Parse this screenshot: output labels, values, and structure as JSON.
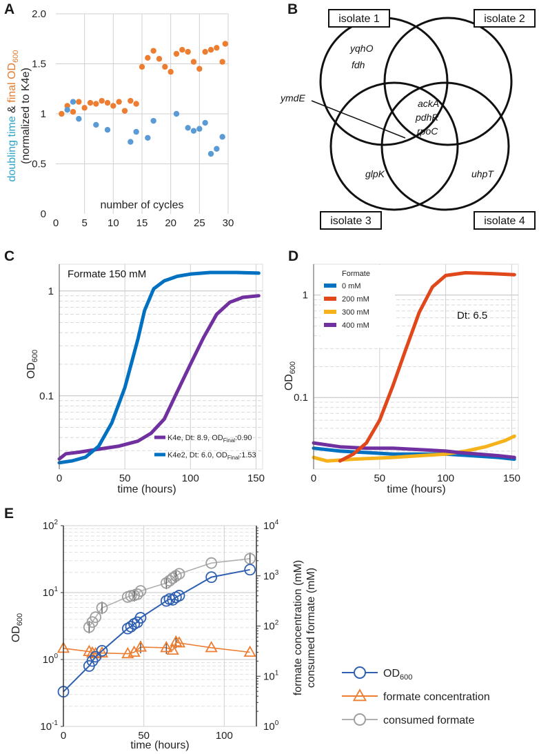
{
  "panels": {
    "A": "A",
    "B": "B",
    "C": "C",
    "D": "D",
    "E": "E"
  },
  "colors": {
    "orange": "#ED7D31",
    "blue_point": "#5B9BD5",
    "teal_text": "#2EA4C9",
    "orange_text": "#E27A2C",
    "blue_line": "#0070C0",
    "purple_line": "#7030A0",
    "red_line": "#E0481C",
    "yellow_line": "#F5B21B",
    "e_blue": "#2E5FB0",
    "e_orange": "#ED7D31",
    "e_grey": "#9E9E9E"
  },
  "chart_data": [
    {
      "id": "A",
      "type": "scatter",
      "ylabel_parts": {
        "p1": "doubling time",
        "p2": " & ",
        "p3": "final OD",
        "p3_sub": "600",
        "line2": "(normalized to K4e)"
      },
      "xlabel": "number of cycles",
      "xlim": [
        0,
        30
      ],
      "ylim": [
        0,
        2.0
      ],
      "xticks": [
        0,
        5,
        10,
        15,
        20,
        25,
        30
      ],
      "yticks": [
        0,
        0.5,
        1,
        1.5,
        2.0
      ],
      "ytick_labels": [
        "0",
        "0.5",
        "1",
        "1.5",
        "2.0"
      ],
      "series": [
        {
          "name": "final OD600",
          "color": "orange",
          "points": [
            [
              1,
              1.0
            ],
            [
              2,
              1.08
            ],
            [
              3,
              1.02
            ],
            [
              4,
              1.12
            ],
            [
              5,
              1.06
            ],
            [
              6,
              1.11
            ],
            [
              7,
              1.1
            ],
            [
              8,
              1.13
            ],
            [
              9,
              1.11
            ],
            [
              10,
              1.08
            ],
            [
              11,
              1.12
            ],
            [
              12,
              1.03
            ],
            [
              13,
              1.13
            ],
            [
              14,
              1.1
            ],
            [
              15,
              1.47
            ],
            [
              16,
              1.56
            ],
            [
              17,
              1.63
            ],
            [
              18,
              1.55
            ],
            [
              19,
              1.47
            ],
            [
              20,
              1.42
            ],
            [
              21,
              1.6
            ],
            [
              22,
              1.64
            ],
            [
              23,
              1.62
            ],
            [
              24,
              1.52
            ],
            [
              25,
              1.45
            ],
            [
              26,
              1.62
            ],
            [
              27,
              1.64
            ],
            [
              28,
              1.66
            ],
            [
              29,
              1.52
            ],
            [
              29.5,
              1.7
            ]
          ]
        },
        {
          "name": "doubling time",
          "color": "blue_point",
          "points": [
            [
              2,
              1.04
            ],
            [
              3,
              1.12
            ],
            [
              4,
              0.95
            ],
            [
              7,
              0.89
            ],
            [
              9,
              0.84
            ],
            [
              13,
              0.72
            ],
            [
              14,
              0.82
            ],
            [
              16,
              0.76
            ],
            [
              17,
              0.93
            ],
            [
              21,
              1.0
            ],
            [
              23,
              0.86
            ],
            [
              24,
              0.83
            ],
            [
              25,
              0.85
            ],
            [
              26,
              0.91
            ],
            [
              27,
              0.6
            ],
            [
              28,
              0.65
            ],
            [
              29,
              0.77
            ]
          ]
        }
      ]
    },
    {
      "id": "B",
      "type": "venn",
      "sets": [
        "isolate 1",
        "isolate 2",
        "isolate 3",
        "isolate 4"
      ],
      "genes": {
        "iso1_only": [
          "yqhO",
          "fdh"
        ],
        "center": [
          "ackA",
          "pdhR",
          "rpoC"
        ],
        "iso3_only": [
          "glpK"
        ],
        "iso4_only": [
          "uhpT"
        ],
        "iso1_iso3": [
          "ymdE"
        ]
      }
    },
    {
      "id": "C",
      "type": "line",
      "yscale": "log",
      "title_annotation": "Formate 150 mM",
      "xlabel": "time (hours)",
      "ylabel": "OD",
      "ylabel_sub": "600",
      "xlim": [
        0,
        155
      ],
      "ylim": [
        0.02,
        1.8
      ],
      "xticks": [
        0,
        50,
        100,
        150
      ],
      "yticks": [
        0.1,
        1
      ],
      "ytick_labels": [
        "0.1",
        "1"
      ],
      "series": [
        {
          "name": "K4e, Dt: 8.9, OD",
          "name_sub": "Final",
          "name_tail": ":0.90",
          "color": "purple_line",
          "points": [
            [
              0,
              0.025
            ],
            [
              5,
              0.028
            ],
            [
              15,
              0.029
            ],
            [
              30,
              0.031
            ],
            [
              45,
              0.033
            ],
            [
              60,
              0.037
            ],
            [
              70,
              0.044
            ],
            [
              80,
              0.06
            ],
            [
              90,
              0.11
            ],
            [
              100,
              0.2
            ],
            [
              110,
              0.36
            ],
            [
              120,
              0.6
            ],
            [
              130,
              0.78
            ],
            [
              140,
              0.87
            ],
            [
              152,
              0.9
            ]
          ]
        },
        {
          "name": "K4e2, Dt: 6.0, OD",
          "name_sub": "Final",
          "name_tail": ":1.53",
          "color": "blue_line",
          "points": [
            [
              0,
              0.023
            ],
            [
              10,
              0.024
            ],
            [
              20,
              0.026
            ],
            [
              30,
              0.033
            ],
            [
              40,
              0.055
            ],
            [
              50,
              0.12
            ],
            [
              60,
              0.35
            ],
            [
              65,
              0.65
            ],
            [
              72,
              1.05
            ],
            [
              80,
              1.25
            ],
            [
              90,
              1.38
            ],
            [
              100,
              1.45
            ],
            [
              115,
              1.5
            ],
            [
              135,
              1.5
            ],
            [
              152,
              1.48
            ]
          ]
        }
      ]
    },
    {
      "id": "D",
      "type": "line",
      "yscale": "log",
      "annotation": "Dt: 6.5",
      "xlabel": "time (hours)",
      "ylabel": "OD",
      "ylabel_sub": "600",
      "legend_title": "Formate",
      "xlim": [
        0,
        155
      ],
      "ylim": [
        0.02,
        2.0
      ],
      "xticks": [
        0,
        50,
        100,
        150
      ],
      "yticks": [
        0.1,
        1
      ],
      "ytick_labels": [
        "0.1",
        "1"
      ],
      "series": [
        {
          "name": "0 mM",
          "color": "blue_line",
          "points": [
            [
              0,
              0.032
            ],
            [
              20,
              0.03
            ],
            [
              40,
              0.029
            ],
            [
              60,
              0.028
            ],
            [
              80,
              0.028
            ],
            [
              100,
              0.028
            ],
            [
              120,
              0.027
            ],
            [
              140,
              0.026
            ],
            [
              152,
              0.025
            ]
          ]
        },
        {
          "name": "200 mM",
          "color": "red_line",
          "points": [
            [
              20,
              0.024
            ],
            [
              30,
              0.028
            ],
            [
              40,
              0.036
            ],
            [
              50,
              0.06
            ],
            [
              60,
              0.13
            ],
            [
              70,
              0.3
            ],
            [
              80,
              0.68
            ],
            [
              90,
              1.2
            ],
            [
              100,
              1.55
            ],
            [
              115,
              1.65
            ],
            [
              135,
              1.62
            ],
            [
              152,
              1.58
            ]
          ]
        },
        {
          "name": "300 mM",
          "color": "yellow_line",
          "points": [
            [
              0,
              0.026
            ],
            [
              10,
              0.024
            ],
            [
              30,
              0.025
            ],
            [
              60,
              0.026
            ],
            [
              80,
              0.027
            ],
            [
              100,
              0.028
            ],
            [
              115,
              0.03
            ],
            [
              130,
              0.033
            ],
            [
              145,
              0.038
            ],
            [
              152,
              0.042
            ]
          ]
        },
        {
          "name": "400 mM",
          "color": "purple_line",
          "points": [
            [
              0,
              0.036
            ],
            [
              20,
              0.033
            ],
            [
              40,
              0.032
            ],
            [
              60,
              0.032
            ],
            [
              80,
              0.031
            ],
            [
              100,
              0.03
            ],
            [
              110,
              0.029
            ],
            [
              125,
              0.028
            ],
            [
              140,
              0.027
            ],
            [
              152,
              0.026
            ]
          ]
        }
      ]
    },
    {
      "id": "E",
      "type": "line",
      "yscale": "log",
      "xlabel": "time (hours)",
      "ylabel": "OD",
      "ylabel_sub": "600",
      "ylabel_right_1": "formate concentration (mM)",
      "ylabel_right_2": "consumed formate (mM)",
      "xlim": [
        0,
        120
      ],
      "ylim": [
        0.1,
        100
      ],
      "ylim_right": [
        1,
        10000
      ],
      "xticks": [
        0,
        50,
        100
      ],
      "yticks_exp": [
        "-1",
        "0",
        "1",
        "2"
      ],
      "yticks_right_exp": [
        "0",
        "1",
        "2",
        "3",
        "4"
      ],
      "tick_base": "10",
      "series": [
        {
          "name": "OD",
          "name_sub": "600",
          "color": "e_blue",
          "marker": "circle",
          "axis": "left",
          "points": [
            [
              0,
              0.33
            ],
            [
              16,
              0.8
            ],
            [
              18,
              0.95
            ],
            [
              20,
              1.1
            ],
            [
              24,
              1.35
            ],
            [
              40,
              2.9
            ],
            [
              42,
              3.1
            ],
            [
              44,
              3.4
            ],
            [
              46,
              3.6
            ],
            [
              48,
              4.2
            ],
            [
              64,
              7.5
            ],
            [
              66,
              8.0
            ],
            [
              68,
              7.8
            ],
            [
              70,
              8.5
            ],
            [
              72,
              9.0
            ],
            [
              92,
              17.0
            ],
            [
              116,
              22.0
            ]
          ]
        },
        {
          "name": "formate concentration",
          "color": "e_orange",
          "marker": "triangle",
          "axis": "right",
          "points": [
            [
              0,
              36
            ],
            [
              16,
              31
            ],
            [
              18,
              29
            ],
            [
              20,
              28
            ],
            [
              24,
              29
            ],
            [
              40,
              28
            ],
            [
              44,
              30
            ],
            [
              48,
              38
            ],
            [
              64,
              37
            ],
            [
              68,
              33
            ],
            [
              70,
              48
            ],
            [
              72,
              46
            ],
            [
              92,
              37
            ],
            [
              116,
              30
            ]
          ]
        },
        {
          "name": "consumed formate",
          "color": "e_grey",
          "marker": "circle",
          "axis": "right",
          "points": [
            [
              16,
              95
            ],
            [
              18,
              120
            ],
            [
              20,
              150
            ],
            [
              24,
              230
            ],
            [
              40,
              380
            ],
            [
              42,
              400
            ],
            [
              44,
              410
            ],
            [
              46,
              430
            ],
            [
              48,
              500
            ],
            [
              64,
              720
            ],
            [
              66,
              800
            ],
            [
              68,
              900
            ],
            [
              70,
              1000
            ],
            [
              72,
              1100
            ],
            [
              92,
              1800
            ],
            [
              116,
              2200
            ]
          ]
        }
      ]
    }
  ]
}
